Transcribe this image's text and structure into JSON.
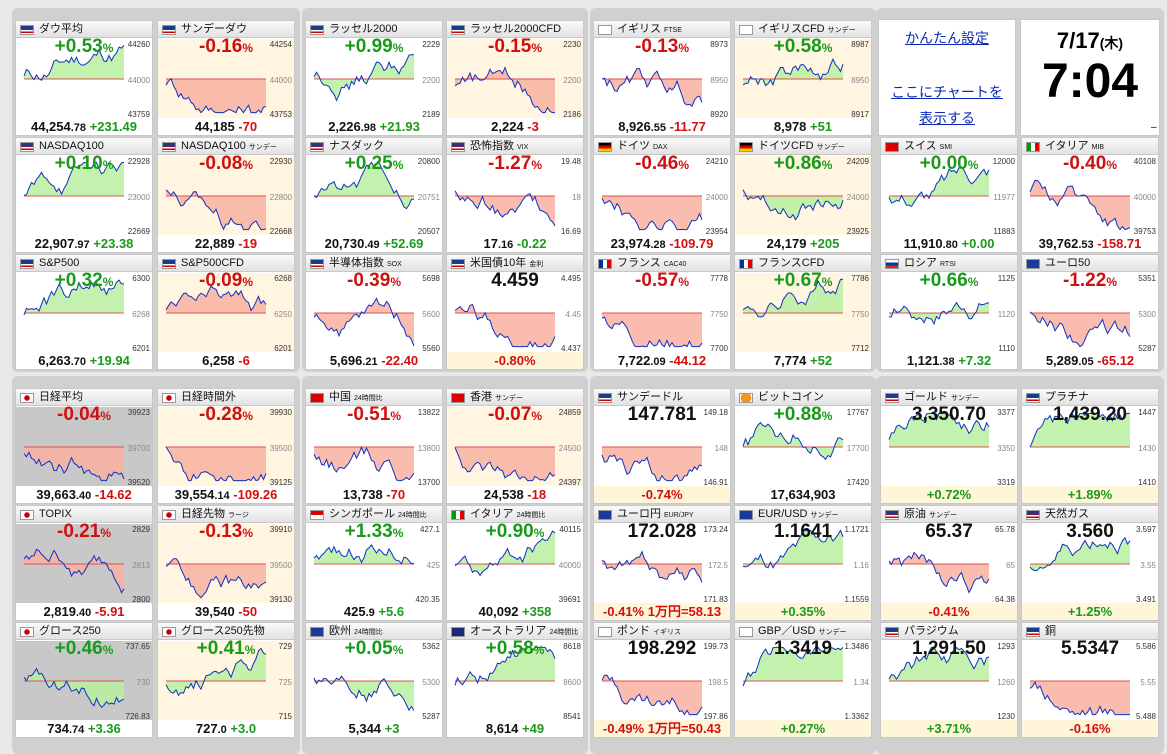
{
  "settings": {
    "link1": "かんたん設定",
    "link2": "ここにチャートを",
    "link3": "表示する"
  },
  "clock": {
    "date": "7/17",
    "weekday": "(木)",
    "time": "7:04",
    "mark": "–"
  },
  "tiles": [
    {
      "flag": "us",
      "name": "ダウ平均",
      "sub": "",
      "pct": "+0.53",
      "dir": "up",
      "v1": "44,254",
      "v2": ".78",
      "chg": "+231.49",
      "cdir": "up",
      "y": [
        44260,
        44000,
        43759
      ],
      "bg": "#ffffff"
    },
    {
      "flag": "us",
      "name": "サンデーダウ",
      "sub": "",
      "pct": "-0.16",
      "dir": "dn",
      "v1": "44,185",
      "v2": "",
      "chg": "-70",
      "cdir": "dn",
      "y": [
        44254,
        44000,
        43753
      ],
      "bg": "#fff5e0"
    },
    {
      "flag": "us",
      "name": "ラッセル2000",
      "sub": "",
      "pct": "+0.99",
      "dir": "up",
      "v1": "2,226",
      "v2": ".98",
      "chg": "+21.93",
      "cdir": "up",
      "y": [
        2229,
        2200,
        2189
      ],
      "bg": "#ffffff"
    },
    {
      "flag": "us",
      "name": "ラッセル2000CFD",
      "sub": "",
      "pct": "-0.15",
      "dir": "dn",
      "v1": "2,224",
      "v2": "",
      "chg": "-3",
      "cdir": "dn",
      "y": [
        2230,
        2200,
        2186
      ],
      "bg": "#fff5e0"
    },
    {
      "flag": "gb",
      "name": "イギリス",
      "sub": "FTSE",
      "pct": "-0.13",
      "dir": "dn",
      "v1": "8,926",
      "v2": ".55",
      "chg": "-11.77",
      "cdir": "dn",
      "y": [
        8973,
        8950,
        8920
      ],
      "bg": "#ffffff"
    },
    {
      "flag": "gb",
      "name": "イギリスCFD",
      "sub": "サンデー",
      "pct": "+0.58",
      "dir": "up",
      "v1": "8,978",
      "v2": "",
      "chg": "+51",
      "cdir": "up",
      "y": [
        8987,
        8950,
        8917
      ],
      "bg": "#fff5e0"
    },
    {
      "flag": "us",
      "name": "NASDAQ100",
      "sub": "",
      "pct": "+0.10",
      "dir": "up",
      "v1": "22,907",
      "v2": ".97",
      "chg": "+23.38",
      "cdir": "up",
      "y": [
        22928,
        23000,
        22669
      ],
      "bg": "#ffffff"
    },
    {
      "flag": "us",
      "name": "NASDAQ100",
      "sub": "サンデー",
      "pct": "-0.08",
      "dir": "dn",
      "v1": "22,889",
      "v2": "",
      "chg": "-19",
      "cdir": "dn",
      "y": [
        22930,
        22800,
        22668
      ],
      "bg": "#fff5e0"
    },
    {
      "flag": "us",
      "name": "ナスダック",
      "sub": "",
      "pct": "+0.25",
      "dir": "up",
      "v1": "20,730",
      "v2": ".49",
      "chg": "+52.69",
      "cdir": "up",
      "y": [
        20800,
        20751,
        20507
      ],
      "bg": "#ffffff"
    },
    {
      "flag": "us",
      "name": "恐怖指数",
      "sub": "VIX",
      "pct": "-1.27",
      "dir": "dn",
      "v1": "17",
      "v2": ".16",
      "chg": "-0.22",
      "cdir": "up",
      "y": [
        19.48,
        18.0,
        16.69
      ],
      "bg": "#ffffff"
    },
    {
      "flag": "de",
      "name": "ドイツ",
      "sub": "DAX",
      "pct": "-0.46",
      "dir": "dn",
      "v1": "23,974",
      "v2": ".28",
      "chg": "-109.79",
      "cdir": "dn",
      "y": [
        24210,
        24000,
        23954
      ],
      "bg": "#ffffff"
    },
    {
      "flag": "de",
      "name": "ドイツCFD",
      "sub": "サンデー",
      "pct": "+0.86",
      "dir": "up",
      "v1": "24,179",
      "v2": "",
      "chg": "+205",
      "cdir": "up",
      "y": [
        24209,
        24000,
        23925
      ],
      "bg": "#fff5e0"
    },
    {
      "flag": "ch",
      "name": "スイス",
      "sub": "SMI",
      "pct": "+0.00",
      "dir": "up",
      "v1": "11,910",
      "v2": ".80",
      "chg": "+0.00",
      "cdir": "up",
      "y": [
        12000,
        11977,
        11883
      ],
      "bg": "#ffffff"
    },
    {
      "flag": "it",
      "name": "イタリア",
      "sub": "MIB",
      "pct": "-0.40",
      "dir": "dn",
      "v1": "39,762",
      "v2": ".53",
      "chg": "-158.71",
      "cdir": "dn",
      "y": [
        40108,
        40000,
        39753
      ],
      "bg": "#ffffff"
    },
    {
      "flag": "us",
      "name": "S&P500",
      "sub": "",
      "pct": "+0.32",
      "dir": "up",
      "v1": "6,263",
      "v2": ".70",
      "chg": "+19.94",
      "cdir": "up",
      "y": [
        6300,
        6268,
        6201
      ],
      "bg": "#ffffff"
    },
    {
      "flag": "us",
      "name": "S&P500CFD",
      "sub": "",
      "pct": "-0.09",
      "dir": "dn",
      "v1": "6,258",
      "v2": "",
      "chg": "-6",
      "cdir": "dn",
      "y": [
        6268,
        6250,
        6201
      ],
      "bg": "#fff5e0"
    },
    {
      "flag": "us",
      "name": "半導体指数",
      "sub": "SOX",
      "pct": "-0.39",
      "dir": "dn",
      "v1": "5,696",
      "v2": ".21",
      "chg": "-22.40",
      "cdir": "dn",
      "y": [
        5698,
        5600,
        5560
      ],
      "bg": "#ffffff"
    },
    {
      "flag": "us",
      "name": "米国債10年",
      "sub": "金利",
      "pct": "4.459",
      "dir": "blk",
      "v1": "",
      "v2": "",
      "chg": "-0.80%",
      "cdir": "dn",
      "y": [
        4.495,
        4.45,
        4.437
      ],
      "bg": "#ffffff"
    },
    {
      "flag": "fr",
      "name": "フランス",
      "sub": "CAC40",
      "pct": "-0.57",
      "dir": "dn",
      "v1": "7,722",
      "v2": ".09",
      "chg": "-44.12",
      "cdir": "dn",
      "y": [
        7778,
        7750,
        7700
      ],
      "bg": "#ffffff"
    },
    {
      "flag": "fr",
      "name": "フランスCFD",
      "sub": "",
      "pct": "+0.67",
      "dir": "up",
      "v1": "7,774",
      "v2": "",
      "chg": "+52",
      "cdir": "up",
      "y": [
        7786,
        7750,
        7712
      ],
      "bg": "#fff5e0"
    },
    {
      "flag": "ru",
      "name": "ロシア",
      "sub": "RTSI",
      "pct": "+0.66",
      "dir": "up",
      "v1": "1,121",
      "v2": ".38",
      "chg": "+7.32",
      "cdir": "up",
      "y": [
        1125,
        1120,
        1110
      ],
      "bg": "#ffffff"
    },
    {
      "flag": "eu",
      "name": "ユーロ50",
      "sub": "",
      "pct": "-1.22",
      "dir": "dn",
      "v1": "5,289",
      "v2": ".05",
      "chg": "-65.12",
      "cdir": "dn",
      "y": [
        5351,
        5300,
        5287
      ],
      "bg": "#ffffff"
    },
    {
      "flag": "jp",
      "name": "日経平均",
      "sub": "",
      "pct": "-0.04",
      "dir": "dn",
      "v1": "39,663",
      "v2": ".40",
      "chg": "-14.62",
      "cdir": "dn",
      "y": [
        39923,
        39700,
        39520
      ],
      "bg": "#c8c8c8"
    },
    {
      "flag": "jp",
      "name": "日経時間外",
      "sub": "",
      "pct": "-0.28",
      "dir": "dn",
      "v1": "39,554",
      "v2": ".14",
      "chg": "-109.26",
      "cdir": "dn",
      "y": [
        39930,
        39500,
        39125
      ],
      "bg": "#fff5e0"
    },
    {
      "flag": "cn",
      "name": "中国",
      "sub": "24時間比",
      "pct": "-0.51",
      "dir": "dn",
      "v1": "13,738",
      "v2": "",
      "chg": "-70",
      "cdir": "dn",
      "y": [
        13822,
        13800,
        13700
      ],
      "bg": "#ffffff"
    },
    {
      "flag": "hk",
      "name": "香港",
      "sub": "サンデー",
      "pct": "-0.07",
      "dir": "dn",
      "v1": "24,538",
      "v2": "",
      "chg": "-18",
      "cdir": "dn",
      "y": [
        24859,
        24500,
        24397
      ],
      "bg": "#fff5e0"
    },
    {
      "flag": "us",
      "name": "サンデードル",
      "sub": "",
      "pct": "147.781",
      "dir": "blk",
      "v1": "",
      "v2": "",
      "chg": "-0.74%",
      "cdir": "dn",
      "y": [
        149.18,
        148.0,
        146.91
      ],
      "bg": "#ffffff"
    },
    {
      "flag": "btc",
      "name": "ビットコイン",
      "sub": "",
      "pct": "+0.88",
      "dir": "up",
      "v1": "17,634,903",
      "v2": "",
      "chg": "",
      "cdir": "blk",
      "y": [
        17767,
        17700,
        17420
      ],
      "bg": "#ffffff"
    },
    {
      "flag": "us",
      "name": "ゴールド",
      "sub": "サンデー",
      "pct": "3,350.70",
      "dir": "blk",
      "v1": "",
      "v2": "",
      "chg": "+0.72%",
      "cdir": "up",
      "y": [
        3377,
        3350,
        3319
      ],
      "bg": "#ffffff"
    },
    {
      "flag": "us",
      "name": "プラチナ",
      "sub": "",
      "pct": "1,439.20",
      "dir": "blk",
      "v1": "",
      "v2": "",
      "chg": "+1.89%",
      "cdir": "up",
      "y": [
        1447,
        1430,
        1410
      ],
      "bg": "#ffffff"
    },
    {
      "flag": "jp",
      "name": "TOPIX",
      "sub": "",
      "pct": "-0.21",
      "dir": "dn",
      "v1": "2,819",
      "v2": ".40",
      "chg": "-5.91",
      "cdir": "dn",
      "y": [
        2829,
        2813,
        2800
      ],
      "bg": "#c8c8c8"
    },
    {
      "flag": "jp",
      "name": "日経先物",
      "sub": "ラージ",
      "pct": "-0.13",
      "dir": "dn",
      "v1": "39,540",
      "v2": "",
      "chg": "-50",
      "cdir": "dn",
      "y": [
        39910,
        39500,
        39130
      ],
      "bg": "#fff5e0"
    },
    {
      "flag": "sg",
      "name": "シンガポール",
      "sub": "24時間比",
      "pct": "+1.33",
      "dir": "up",
      "v1": "425",
      "v2": ".9",
      "chg": "+5.6",
      "cdir": "up",
      "y": [
        427.1,
        425.0,
        420.35
      ],
      "bg": "#ffffff"
    },
    {
      "flag": "it",
      "name": "イタリア",
      "sub": "24時間比",
      "pct": "+0.90",
      "dir": "up",
      "v1": "40,092",
      "v2": "",
      "chg": "+358",
      "cdir": "up",
      "y": [
        40115,
        40000,
        39691
      ],
      "bg": "#ffffff"
    },
    {
      "flag": "eu",
      "name": "ユーロ円",
      "sub": "EUR/JPY",
      "pct": "172.028",
      "dir": "blk",
      "v1": "",
      "v2": "",
      "chg": "-0.41% 1万円=58.13",
      "cdir": "dn",
      "y": [
        173.24,
        172.5,
        171.83
      ],
      "bg": "#ffffff"
    },
    {
      "flag": "eu",
      "name": "EUR/USD",
      "sub": "サンデー",
      "pct": "1.1641",
      "dir": "blk",
      "v1": "",
      "v2": "",
      "chg": "+0.35%",
      "cdir": "up",
      "y": [
        1.1721,
        1.16,
        1.1559
      ],
      "bg": "#ffffff"
    },
    {
      "flag": "us",
      "name": "原油",
      "sub": "サンデー",
      "pct": "65.37",
      "dir": "blk",
      "v1": "",
      "v2": "",
      "chg": "-0.41%",
      "cdir": "dn",
      "y": [
        65.78,
        65.0,
        64.38
      ],
      "bg": "#ffffff"
    },
    {
      "flag": "us",
      "name": "天然ガス",
      "sub": "",
      "pct": "3.560",
      "dir": "blk",
      "v1": "",
      "v2": "",
      "chg": "+1.25%",
      "cdir": "up",
      "y": [
        3.597,
        3.55,
        3.491
      ],
      "bg": "#ffffff"
    },
    {
      "flag": "jp",
      "name": "グロース250",
      "sub": "",
      "pct": "+0.46",
      "dir": "up",
      "v1": "734",
      "v2": ".74",
      "chg": "+3.36",
      "cdir": "up",
      "y": [
        737.65,
        730.0,
        726.83
      ],
      "bg": "#c8c8c8"
    },
    {
      "flag": "jp",
      "name": "グロース250先物",
      "sub": "",
      "pct": "+0.41",
      "dir": "up",
      "v1": "727",
      "v2": ".0",
      "chg": "+3.0",
      "cdir": "up",
      "y": [
        729.0,
        725.0,
        715.0
      ],
      "bg": "#fff5e0"
    },
    {
      "flag": "eu",
      "name": "欧州",
      "sub": "24時間比",
      "pct": "+0.05",
      "dir": "up",
      "v1": "5,344",
      "v2": "",
      "chg": "+3",
      "cdir": "up",
      "y": [
        5362,
        5300,
        5287
      ],
      "bg": "#ffffff"
    },
    {
      "flag": "au",
      "name": "オーストラリア",
      "sub": "24時間比",
      "pct": "+0.58",
      "dir": "up",
      "v1": "8,614",
      "v2": "",
      "chg": "+49",
      "cdir": "up",
      "y": [
        8618,
        8600,
        8541
      ],
      "bg": "#ffffff"
    },
    {
      "flag": "gb",
      "name": "ポンド",
      "sub": "イギリス",
      "pct": "198.292",
      "dir": "blk",
      "v1": "",
      "v2": "",
      "chg": "-0.49% 1万円=50.43",
      "cdir": "dn",
      "y": [
        199.73,
        198.5,
        197.86
      ],
      "bg": "#ffffff"
    },
    {
      "flag": "gb",
      "name": "GBP／USD",
      "sub": "サンデー",
      "pct": "1.3419",
      "dir": "blk",
      "v1": "",
      "v2": "",
      "chg": "+0.27%",
      "cdir": "up",
      "y": [
        1.3486,
        1.34,
        1.3362
      ],
      "bg": "#ffffff"
    },
    {
      "flag": "us",
      "name": "パラジウム",
      "sub": "",
      "pct": "1,291.50",
      "dir": "blk",
      "v1": "",
      "v2": "",
      "chg": "+3.71%",
      "cdir": "up",
      "y": [
        1293,
        1260,
        1230
      ],
      "bg": "#ffffff"
    },
    {
      "flag": "us",
      "name": "銅",
      "sub": "",
      "pct": "5.5347",
      "dir": "blk",
      "v1": "",
      "v2": "",
      "chg": "-0.16%",
      "cdir": "dn",
      "y": [
        5.586,
        5.55,
        5.488
      ],
      "bg": "#ffffff"
    }
  ],
  "colors": {
    "up": "#1a9a1a",
    "down": "#d01010",
    "upFill": "#b8f0a0",
    "downFill": "#f8b0a0"
  }
}
